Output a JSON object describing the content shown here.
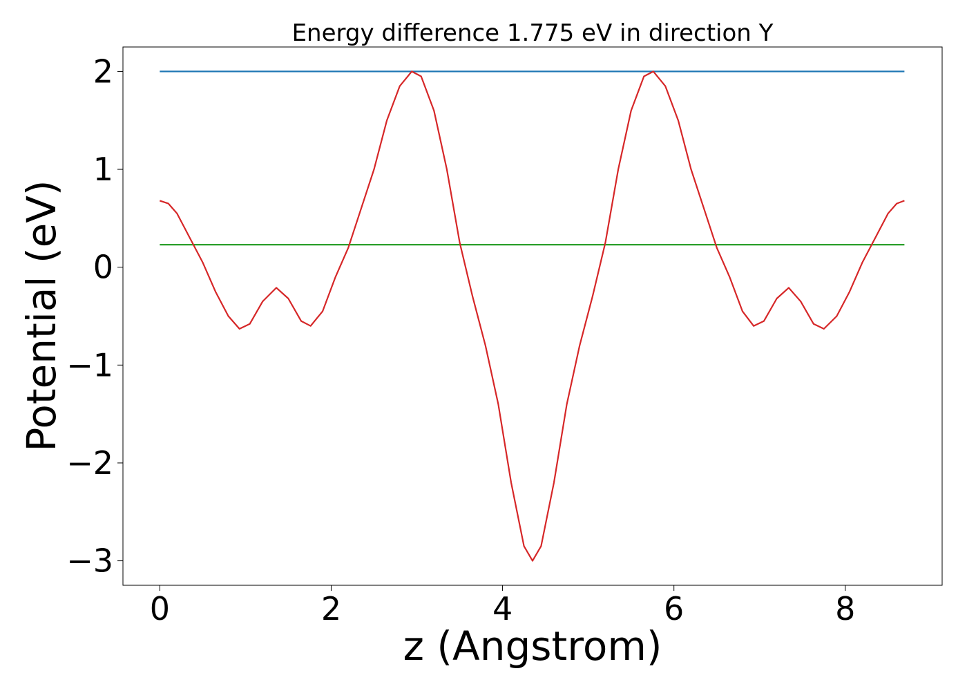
{
  "chart_data": {
    "type": "line",
    "title": "Energy difference 1.775 eV in direction Y",
    "xlabel": "z (Angstrom)",
    "ylabel": "Potential (eV)",
    "xlim": [
      -0.43,
      9.13
    ],
    "ylim": [
      -3.25,
      2.25
    ],
    "xticks": [
      0,
      2,
      4,
      6,
      8
    ],
    "xtick_labels": [
      "0",
      "2",
      "4",
      "6",
      "8"
    ],
    "yticks": [
      -3,
      -2,
      -1,
      0,
      1,
      2
    ],
    "ytick_labels": [
      "−3",
      "−2",
      "−1",
      "0",
      "1",
      "2"
    ],
    "grid": false,
    "series": [
      {
        "color": "#1f77b4",
        "x": [
          0,
          8.69
        ],
        "y": [
          2.0,
          2.0
        ]
      },
      {
        "color": "#2ca02c",
        "x": [
          0,
          8.69
        ],
        "y": [
          0.23,
          0.23
        ]
      },
      {
        "color": "#d62728",
        "x": [
          0.0,
          0.1,
          0.2,
          0.35,
          0.5,
          0.65,
          0.8,
          0.93,
          1.05,
          1.2,
          1.36,
          1.5,
          1.65,
          1.76,
          1.9,
          2.05,
          2.2,
          2.35,
          2.5,
          2.65,
          2.8,
          2.94,
          3.05,
          3.2,
          3.35,
          3.5,
          3.65,
          3.8,
          3.95,
          4.1,
          4.25,
          4.35,
          4.45,
          4.6,
          4.75,
          4.9,
          5.05,
          5.2,
          5.35,
          5.5,
          5.65,
          5.76,
          5.9,
          6.05,
          6.2,
          6.35,
          6.5,
          6.65,
          6.8,
          6.93,
          7.05,
          7.2,
          7.34,
          7.48,
          7.63,
          7.75,
          7.9,
          8.05,
          8.2,
          8.35,
          8.5,
          8.6,
          8.69
        ],
        "y": [
          0.68,
          0.65,
          0.55,
          0.3,
          0.05,
          -0.25,
          -0.5,
          -0.63,
          -0.58,
          -0.35,
          -0.21,
          -0.32,
          -0.55,
          -0.6,
          -0.45,
          -0.1,
          0.2,
          0.6,
          1.0,
          1.5,
          1.85,
          2.0,
          1.95,
          1.6,
          1.0,
          0.25,
          -0.3,
          -0.8,
          -1.4,
          -2.2,
          -2.85,
          -3.0,
          -2.85,
          -2.2,
          -1.4,
          -0.8,
          -0.3,
          0.25,
          1.0,
          1.6,
          1.95,
          2.0,
          1.85,
          1.5,
          1.0,
          0.6,
          0.2,
          -0.1,
          -0.45,
          -0.6,
          -0.55,
          -0.32,
          -0.21,
          -0.35,
          -0.58,
          -0.63,
          -0.5,
          -0.25,
          0.05,
          0.3,
          0.55,
          0.65,
          0.68
        ]
      }
    ]
  }
}
